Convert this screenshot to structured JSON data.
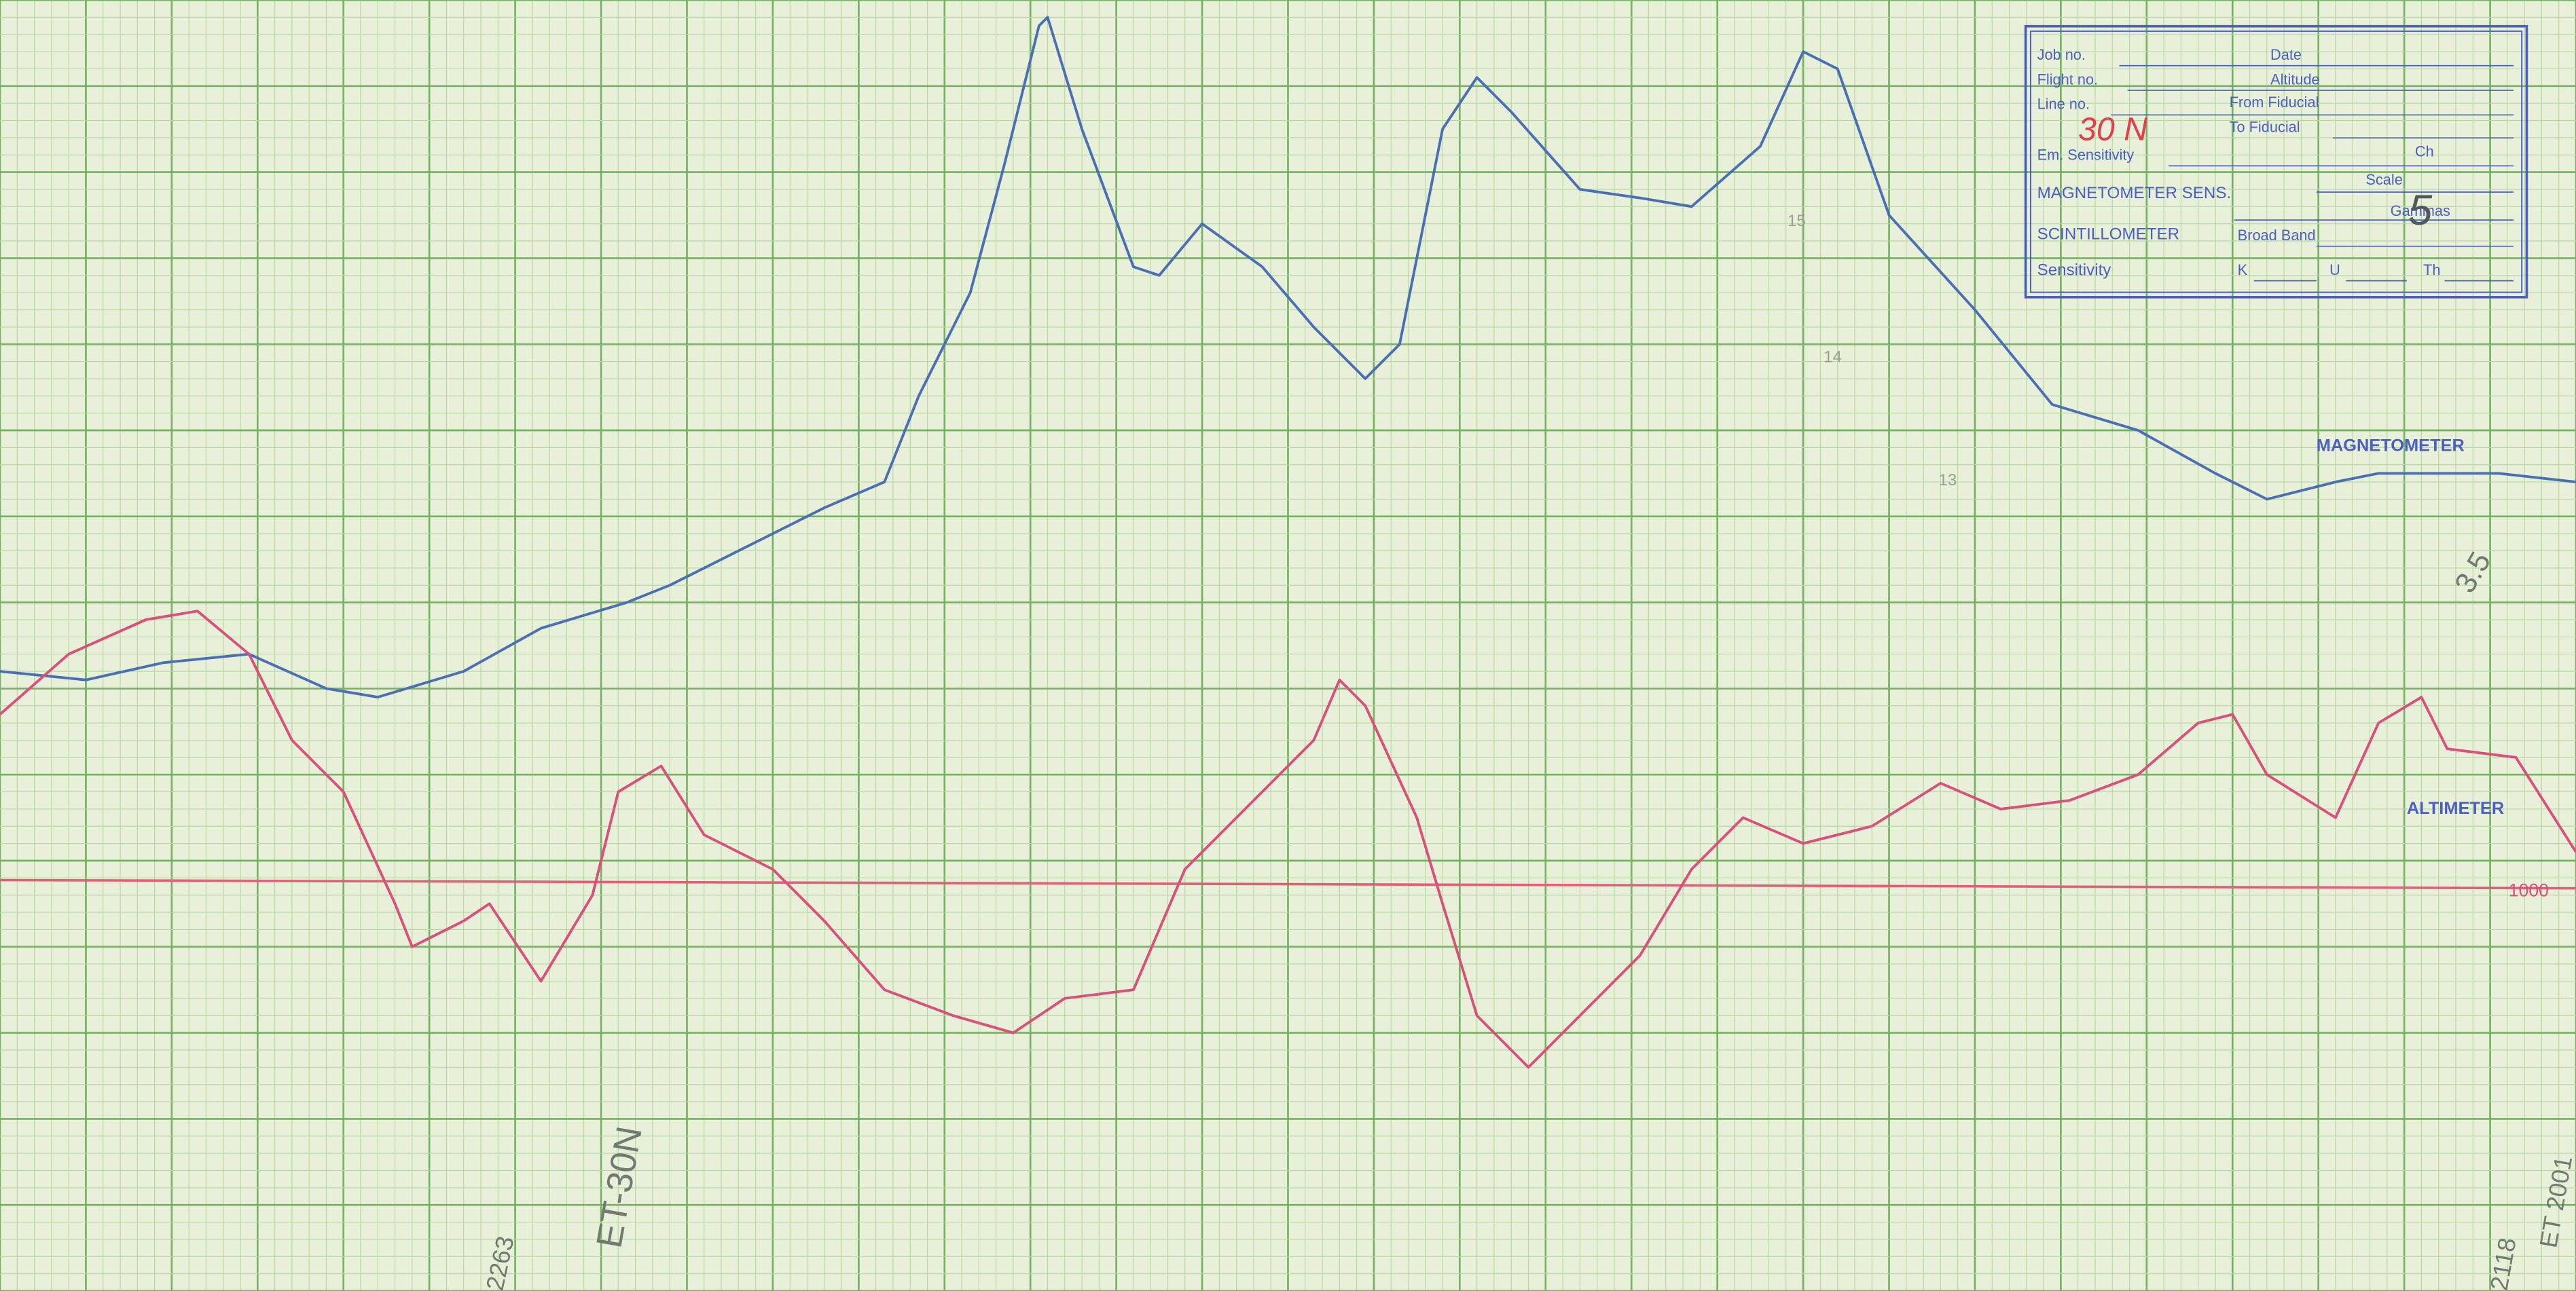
{
  "chart_data": {
    "type": "line",
    "xlim": [
      0,
      30
    ],
    "ylim": [
      0,
      15
    ],
    "grid": true,
    "series": [
      {
        "name": "MAGNETOMETER",
        "color": "#4a6fb5",
        "x": [
          0,
          1.0,
          1.9,
          2.9,
          3.8,
          4.4,
          5.4,
          6.3,
          7.3,
          7.8,
          8.6,
          9.6,
          10.3,
          10.7,
          11.3,
          11.7,
          12.1,
          12.2,
          12.6,
          13.2,
          13.5,
          14.0,
          14.7,
          15.3,
          15.9,
          16.3,
          16.8,
          17.2,
          17.6,
          18.4,
          19.1,
          19.7,
          20.5,
          21.0,
          21.4,
          22.0,
          23.0,
          23.9,
          24.9,
          25.8,
          26.4,
          27.2,
          27.7,
          29.1,
          30
        ],
        "values": [
          7.2,
          7.1,
          7.3,
          7.4,
          7.0,
          6.9,
          7.2,
          7.7,
          8.0,
          8.2,
          8.6,
          9.1,
          9.4,
          10.4,
          11.6,
          13.1,
          14.7,
          14.8,
          13.5,
          11.9,
          11.8,
          12.4,
          11.9,
          11.2,
          10.6,
          11.0,
          13.5,
          14.1,
          13.7,
          12.8,
          12.7,
          12.6,
          13.3,
          14.4,
          14.2,
          12.5,
          11.4,
          10.3,
          10.0,
          9.5,
          9.2,
          9.4,
          9.5,
          9.5,
          9.4
        ]
      },
      {
        "name": "ALTIMETER",
        "color": "#d9507a",
        "x": [
          0,
          0.8,
          1.7,
          2.3,
          2.9,
          3.4,
          4.0,
          4.6,
          4.8,
          5.4,
          5.7,
          6.3,
          6.9,
          7.2,
          7.7,
          8.2,
          9.0,
          9.6,
          10.3,
          11.1,
          11.8,
          12.4,
          13.2,
          13.8,
          14.5,
          15.3,
          15.6,
          15.9,
          16.5,
          16.8,
          17.2,
          17.8,
          18.4,
          19.1,
          19.7,
          20.3,
          21.0,
          21.8,
          22.6,
          23.3,
          24.1,
          24.9,
          25.6,
          26.0,
          26.4,
          27.2,
          27.7,
          28.2,
          28.5,
          29.3,
          30
        ],
        "values": [
          6.7,
          7.4,
          7.8,
          7.9,
          7.4,
          6.4,
          5.8,
          4.5,
          4.0,
          4.3,
          4.5,
          3.6,
          4.6,
          5.8,
          6.1,
          5.3,
          4.9,
          4.3,
          3.5,
          3.2,
          3.0,
          3.4,
          3.5,
          4.9,
          5.6,
          6.4,
          7.1,
          6.8,
          5.5,
          4.5,
          3.2,
          2.6,
          3.2,
          3.9,
          4.9,
          5.5,
          5.2,
          5.4,
          5.9,
          5.6,
          5.7,
          6.0,
          6.6,
          6.7,
          6.0,
          5.5,
          6.6,
          6.9,
          6.3,
          6.2,
          5.1
        ]
      }
    ],
    "annotations": [
      "1000",
      "15",
      "14",
      "13",
      "3.5",
      "ET-30N",
      "2263",
      "2118",
      "ET 2001"
    ]
  },
  "stamp": {
    "fields": [
      "Job no.",
      "Date",
      "Flight no.",
      "Altitude",
      "Line no.",
      "From Fiducial",
      "To Fiducial",
      "Em. Sensitivity",
      "Ch",
      "MAGNETOMETER SENS.",
      "Scale",
      "Gammas",
      "SCINTILLOMETER",
      "Broad Band",
      "Sensitivity",
      "K",
      "U",
      "Th"
    ],
    "entries": [
      "30 N",
      "5"
    ]
  }
}
